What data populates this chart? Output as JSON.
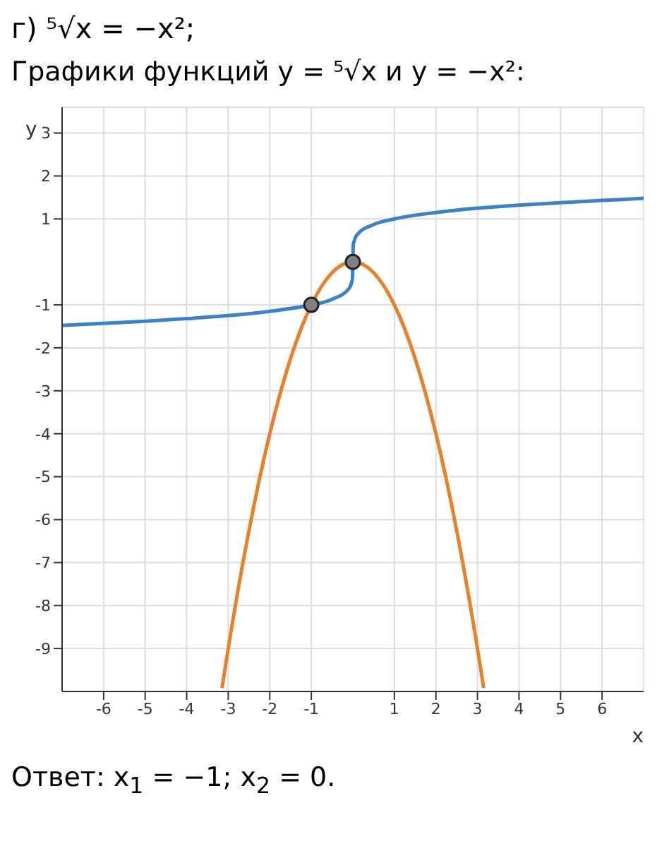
{
  "chart_data": {
    "type": "line",
    "title": "г) ⁵√x = −x²;",
    "subtitle": "Графики функций y = ⁵√x и y = −x²:",
    "xlabel": "x",
    "ylabel": "y",
    "annotations": [
      "Ответ: x$_{1}$ = −1; x$_{2}$ = 0."
    ],
    "xlim": [
      -7,
      7
    ],
    "ylim": [
      -10,
      3.6
    ],
    "xticks": [
      -6,
      -5,
      -4,
      -3,
      -2,
      -1,
      1,
      2,
      3,
      4,
      5,
      6
    ],
    "yticks": [
      -9,
      -8,
      -7,
      -6,
      -5,
      -4,
      -3,
      -2,
      -1,
      1,
      2,
      3
    ],
    "grid": true,
    "line_style": "solid",
    "series": [
      {
        "type": "line",
        "color": "#3c82c8",
        "marker": "none",
        "x": [
          -7,
          -6,
          -5,
          -4,
          -3,
          -2,
          -1,
          -0.5,
          -0.1,
          -0.01,
          0,
          0.01,
          0.1,
          0.5,
          1,
          2,
          3,
          4,
          5,
          6,
          7
        ],
        "values": [
          -1.48,
          -1.43,
          -1.38,
          -1.32,
          -1.25,
          -1.15,
          -1,
          -0.87,
          -0.63,
          -0.4,
          0,
          0.4,
          0.63,
          0.87,
          1,
          1.15,
          1.25,
          1.32,
          1.38,
          1.43,
          1.48
        ]
      },
      {
        "type": "line",
        "color": "#e8822a",
        "marker": "none",
        "x": [
          -3.15,
          -3,
          -2.5,
          -2,
          -1.5,
          -1,
          -0.5,
          0,
          0.5,
          1,
          1.5,
          2,
          2.5,
          3,
          3.15
        ],
        "values": [
          -9.92,
          -9,
          -6.25,
          -4,
          -2.25,
          -1,
          -0.25,
          0,
          -0.25,
          -1,
          -2.25,
          -4,
          -6.25,
          -9,
          -9.92
        ]
      },
      {
        "type": "scatter",
        "color": "#808080",
        "marker": "circle",
        "x": [
          -1,
          0
        ],
        "values": [
          -1,
          0
        ]
      }
    ]
  }
}
